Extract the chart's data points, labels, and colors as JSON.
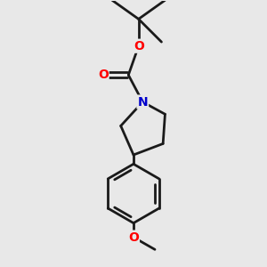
{
  "background_color": "#e8e8e8",
  "bond_color": "#1a1a1a",
  "atom_colors": {
    "O": "#ff0000",
    "N": "#0000cc",
    "C": "#000000"
  },
  "figsize": [
    3.0,
    3.0
  ],
  "dpi": 100,
  "xlim": [
    -1.2,
    1.2
  ],
  "ylim": [
    -2.8,
    2.4
  ]
}
